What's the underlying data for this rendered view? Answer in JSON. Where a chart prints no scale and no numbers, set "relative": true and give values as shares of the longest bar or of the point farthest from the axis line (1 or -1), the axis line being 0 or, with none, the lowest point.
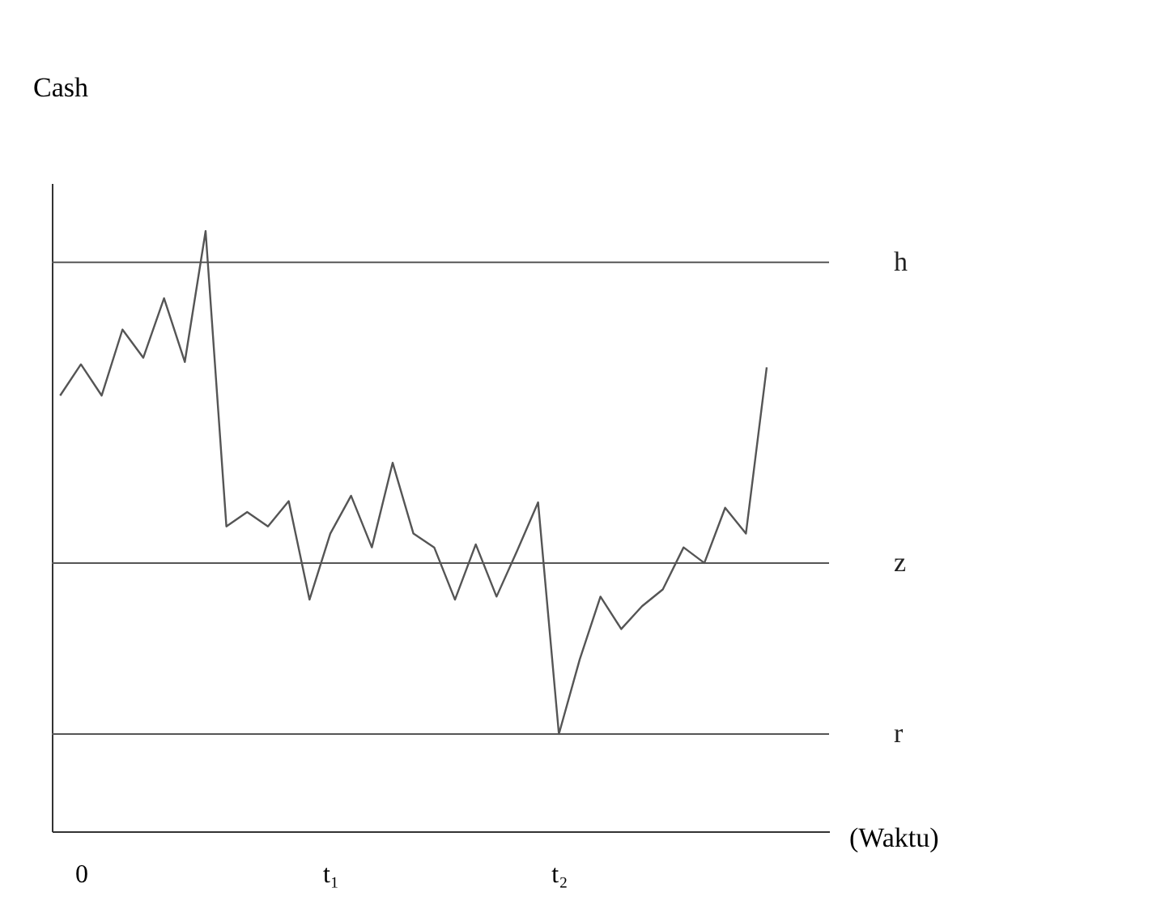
{
  "chart_data": {
    "type": "line",
    "relative": true,
    "xlabel": "(Waktu)",
    "ylabel": "Cash",
    "categories": [
      null,
      "0",
      null,
      null,
      null,
      null,
      null,
      null,
      null,
      null,
      null,
      null,
      null,
      "t₁",
      null,
      null,
      null,
      null,
      null,
      null,
      null,
      null,
      null,
      null,
      "t₂",
      null,
      null,
      null,
      null,
      null,
      null,
      null,
      null,
      null,
      null
    ],
    "series": [
      {
        "color": "#555555",
        "values": [
          0.726,
          0.778,
          0.726,
          0.836,
          0.789,
          0.888,
          0.782,
          1,
          0.508,
          0.532,
          0.508,
          0.55,
          0.386,
          0.496,
          0.559,
          0.473,
          0.614,
          0.496,
          0.473,
          0.386,
          0.478,
          0.391,
          0.468,
          0.548,
          0.162,
          0.286,
          0.391,
          0.337,
          0.375,
          0.403,
          0.473,
          0.447,
          0.539,
          0.496,
          0.773
        ]
      }
    ],
    "ref_lines": [
      {
        "axis": "y",
        "value": 0.948,
        "label": "h",
        "color": "#555555"
      },
      {
        "axis": "y",
        "value": 0.447,
        "label": "z",
        "color": "#555555"
      },
      {
        "axis": "y",
        "value": 0.162,
        "label": "r",
        "color": "#555555"
      }
    ],
    "grid": false
  }
}
